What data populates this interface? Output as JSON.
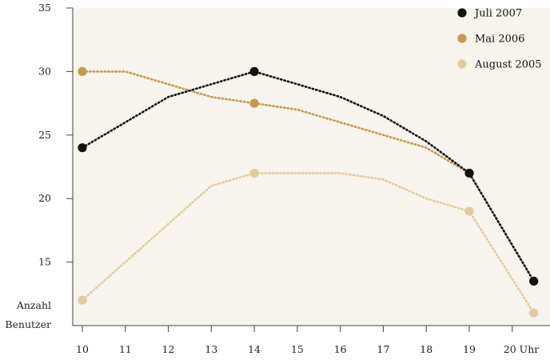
{
  "chart_data": {
    "type": "line",
    "x": [
      10,
      11,
      12,
      13,
      14,
      15,
      16,
      17,
      18,
      19,
      20.5
    ],
    "xtick_labels": [
      "10",
      "11",
      "12",
      "13",
      "14",
      "15",
      "16",
      "17",
      "18",
      "19",
      "20 Uhr"
    ],
    "ytick_labels": [
      "15",
      "20",
      "25",
      "30",
      "35"
    ],
    "ylabel_lines": [
      "Anzahl",
      "Benutzer"
    ],
    "ylim": [
      10,
      35
    ],
    "grid": false,
    "legend_position": "top-right",
    "series": [
      {
        "name": "Juli 2007",
        "color": "#111111",
        "values": [
          24,
          26,
          28,
          29,
          30,
          29,
          28,
          26.5,
          24.5,
          22,
          13.5
        ],
        "markers": [
          0,
          4,
          9,
          10
        ]
      },
      {
        "name": "Mai 2006",
        "color": "#c49a4e",
        "values": [
          30,
          30,
          29,
          28,
          27.5,
          27,
          26,
          25,
          24,
          22,
          13.5
        ],
        "markers": [
          0,
          4,
          9,
          10
        ]
      },
      {
        "name": "August 2005",
        "color": "#e2cba1",
        "values": [
          12,
          15,
          18,
          21,
          22,
          22,
          22,
          21.5,
          20,
          19,
          11
        ],
        "markers": [
          0,
          4,
          9,
          10
        ]
      }
    ]
  }
}
